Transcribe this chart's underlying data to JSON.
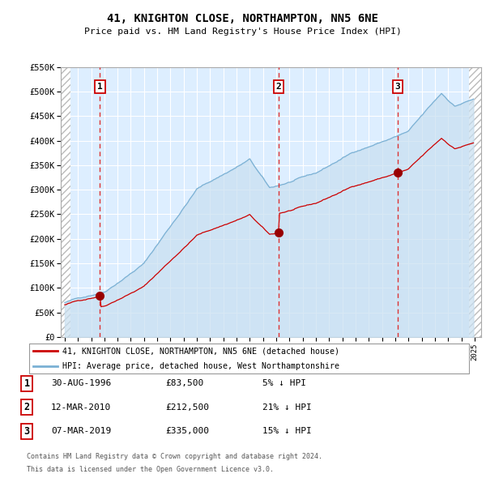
{
  "title": "41, KNIGHTON CLOSE, NORTHAMPTON, NN5 6NE",
  "subtitle": "Price paid vs. HM Land Registry's House Price Index (HPI)",
  "ylim": [
    0,
    550000
  ],
  "xlim_left": 1993.7,
  "xlim_right": 2025.5,
  "hatch_left_end": 1994.42,
  "hatch_right_start": 2024.58,
  "sale_points": [
    {
      "year": 1996.67,
      "price": 83500,
      "label": "1"
    },
    {
      "year": 2010.19,
      "price": 212500,
      "label": "2"
    },
    {
      "year": 2019.17,
      "price": 335000,
      "label": "3"
    }
  ],
  "legend_entries": [
    "41, KNIGHTON CLOSE, NORTHAMPTON, NN5 6NE (detached house)",
    "HPI: Average price, detached house, West Northamptonshire"
  ],
  "table_rows": [
    {
      "num": "1",
      "date": "30-AUG-1996",
      "price": "£83,500",
      "hpi": "5% ↓ HPI"
    },
    {
      "num": "2",
      "date": "12-MAR-2010",
      "price": "£212,500",
      "hpi": "21% ↓ HPI"
    },
    {
      "num": "3",
      "date": "07-MAR-2019",
      "price": "£335,000",
      "hpi": "15% ↓ HPI"
    }
  ],
  "footnote1": "Contains HM Land Registry data © Crown copyright and database right 2024.",
  "footnote2": "This data is licensed under the Open Government Licence v3.0.",
  "red_color": "#cc0000",
  "blue_color": "#7ab0d4",
  "blue_fill_color": "#c8dff0",
  "bg_color": "#ddeeff",
  "grid_color": "#ffffff",
  "dashed_color": "#dd3333",
  "marker_color": "#990000"
}
